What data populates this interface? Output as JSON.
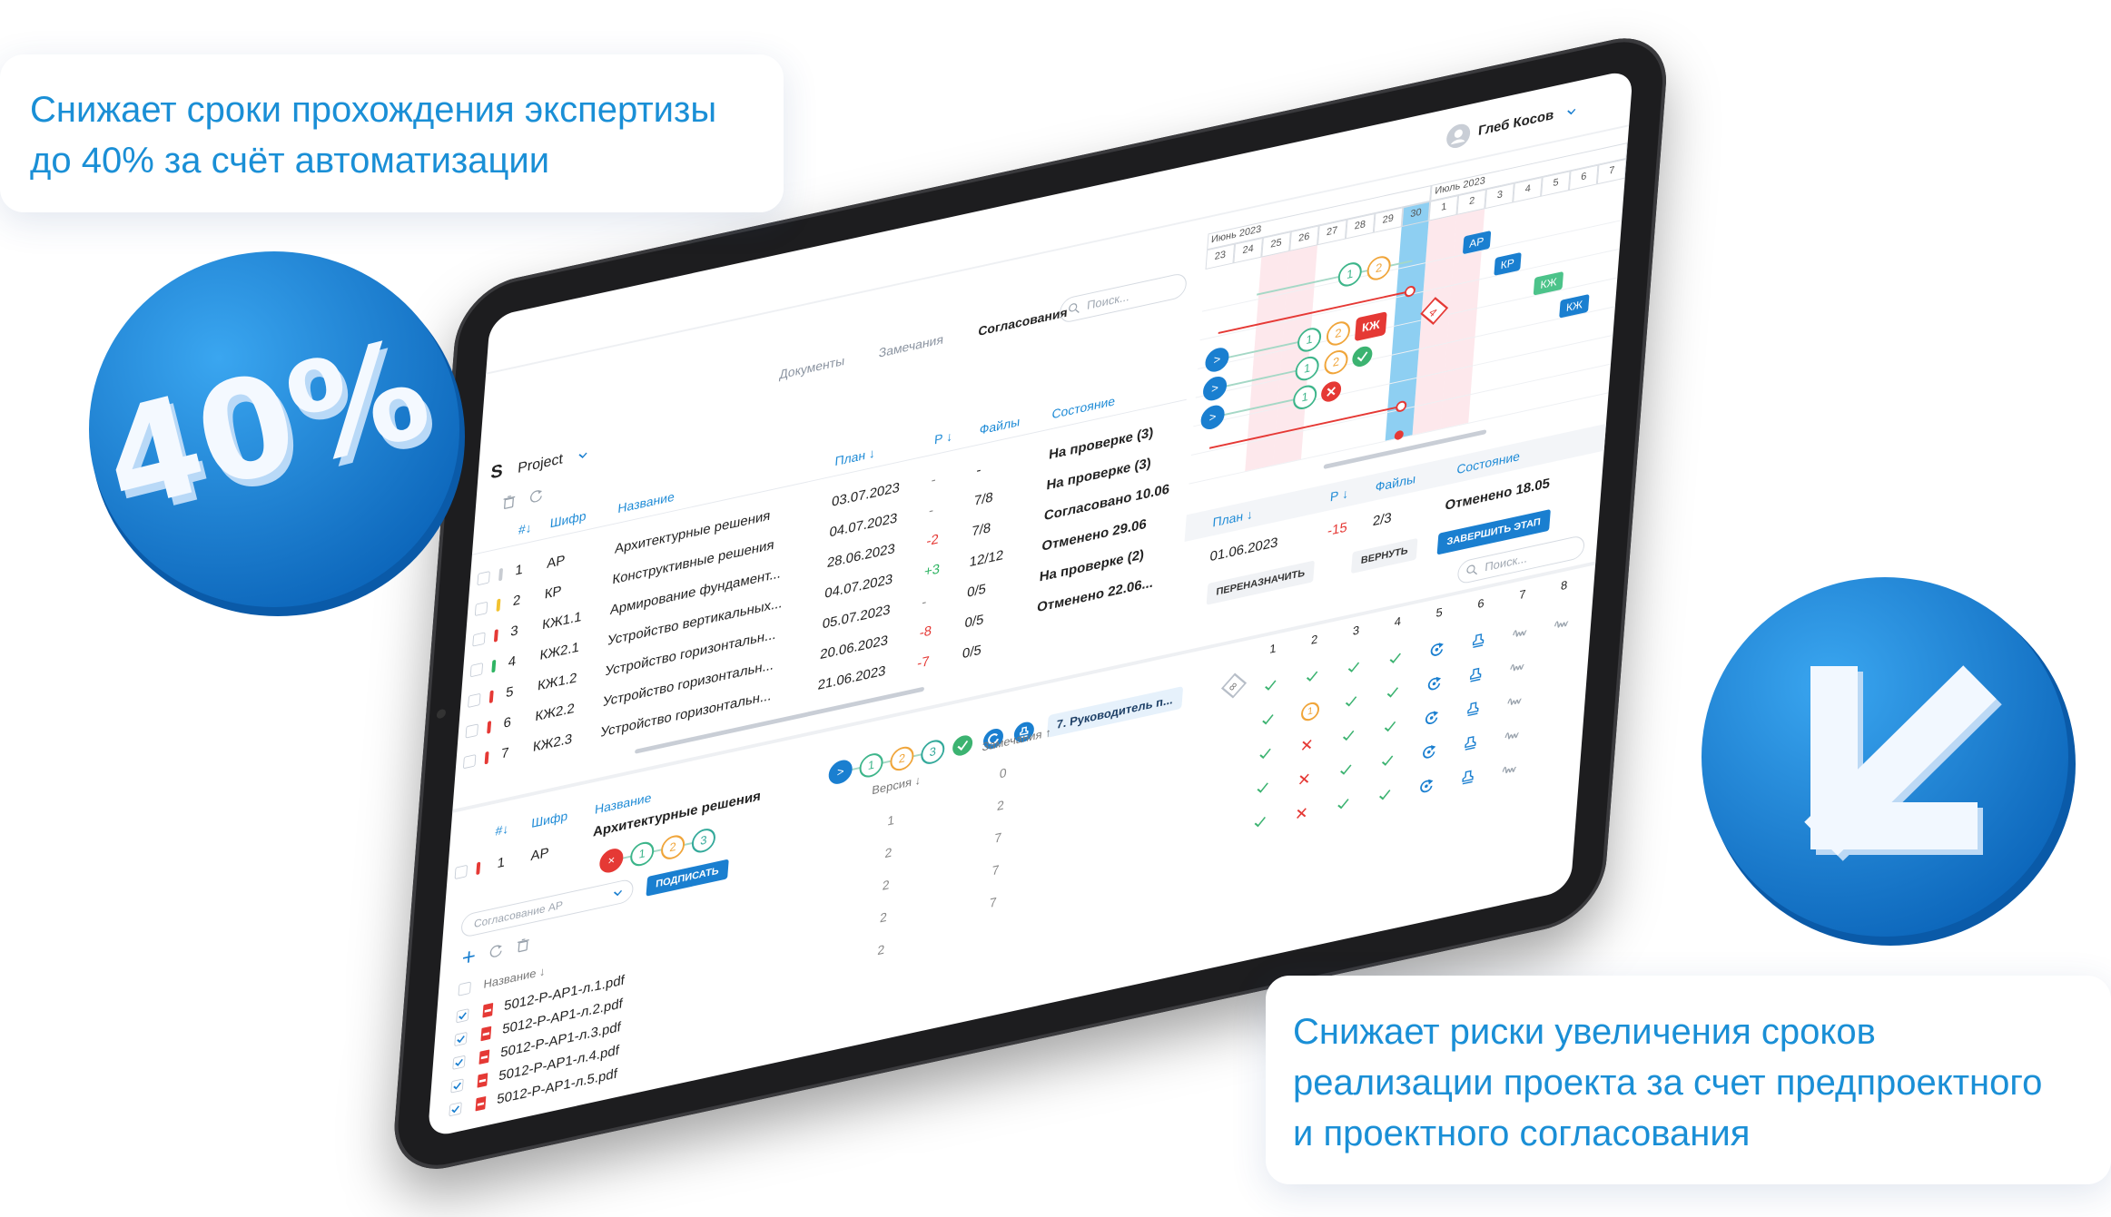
{
  "callouts": [
    {
      "lines": [
        "Снижает сроки прохождения экспертизы",
        "до 40% за счёт автоматизации"
      ]
    },
    {
      "lines": [
        "Снижает риски увеличения сроков",
        "реализации проекта за счет предпроектного",
        "и проектного согласования"
      ]
    }
  ],
  "badge": "40%",
  "app": {
    "user": "Глеб Косов",
    "logo": "S",
    "project": "Project",
    "tabs": [
      "Документы",
      "Замечания",
      "Согласования"
    ],
    "search": "Поиск...",
    "documents": {
      "headers": [
        "#↓",
        "Шифр",
        "Название",
        "План ↓",
        "Р ↓",
        "Файлы",
        "Состояние"
      ],
      "rows": [
        [
          "1",
          "АР",
          "Архитектурные решения",
          "03.07.2023",
          "-",
          "-",
          "На проверке (3)"
        ],
        [
          "2",
          "КР",
          "Конструктивные решения",
          "04.07.2023",
          "-",
          "7/8",
          "На проверке (3)"
        ],
        [
          "3",
          "КЖ1.1",
          "Армирование фундамент...",
          "28.06.2023",
          "-2",
          "7/8",
          "Согласовано 10.06"
        ],
        [
          "4",
          "КЖ2.1",
          "Устройство вертикальных...",
          "04.07.2023",
          "+3",
          "12/12",
          "Отменено 29.06"
        ],
        [
          "5",
          "КЖ1.2",
          "Устройство горизонтальн...",
          "05.07.2023",
          "-",
          "0/5",
          "На проверке (2)"
        ],
        [
          "6",
          "КЖ2.2",
          "Устройство горизонтальн...",
          "20.06.2023",
          "-8",
          "0/5",
          "Отменено 22.06..."
        ],
        [
          "7",
          "КЖ2.3",
          "Устройство горизонтальн...",
          "21.06.2023",
          "-7",
          "0/5"
        ]
      ],
      "status_colors": [
        "#c8ccd2",
        "#f2c230",
        "#e53935",
        "#2fb463",
        "#e53935",
        "#e53935",
        "#e53935"
      ]
    },
    "gantt": {
      "months": [
        "Июнь 2023",
        "Июль 2023"
      ],
      "days": [
        "23",
        "24",
        "25",
        "26",
        "27",
        "28",
        "29",
        "30",
        "1",
        "2",
        "3",
        "4",
        "5",
        "6",
        "7"
      ],
      "tags": [
        "АР",
        "КР",
        "КЖ",
        "КЖ"
      ],
      "chains": [
        [
          "1",
          "2"
        ],
        [
          ">",
          "1",
          "2",
          "КЖ"
        ],
        [
          ">",
          "1",
          "2"
        ],
        [
          ">",
          "1"
        ]
      ],
      "flag": "4"
    },
    "approval": {
      "headers": [
        "#↓",
        "Шифр",
        "Название"
      ],
      "row": [
        "1",
        "АР",
        "Архитектурные решения"
      ],
      "stages": [
        ">",
        "1",
        "2",
        "3"
      ],
      "current": "7. Руководитель п...",
      "next": "8",
      "history": [
        "×",
        "1",
        "2",
        "3"
      ],
      "select": "Согласование АР",
      "sign": "ПОДПИСАТЬ",
      "files_header": "Название ↓",
      "files": [
        "5012-Р-АР1-л.1.pdf",
        "5012-Р-АР1-л.2.pdf",
        "5012-Р-АР1-л.3.pdf",
        "5012-Р-АР1-л.4.pdf",
        "5012-Р-АР1-л.5.pdf"
      ],
      "version_header": "Версия ↓",
      "versions": [
        "1",
        "2",
        "2",
        "2",
        "2"
      ],
      "remarks_header": "Замечания ↑",
      "remarks": [
        "0",
        "2",
        "7",
        "7",
        "7"
      ]
    },
    "stage": {
      "headers": [
        "План ↓",
        "Р ↓",
        "Файлы",
        "Состояние"
      ],
      "row": [
        "01.06.2023",
        "-15",
        "2/3",
        "Отменено 18.05"
      ],
      "buttons": [
        "ПЕРЕНАЗНАЧИТЬ",
        "ВЕРНУТЬ",
        "ЗАВЕРШИТЬ ЭТАП"
      ],
      "search": "Поиск...",
      "columns": [
        "1",
        "2",
        "3",
        "4",
        "5",
        "6",
        "7",
        "8"
      ],
      "pending": "1"
    }
  }
}
